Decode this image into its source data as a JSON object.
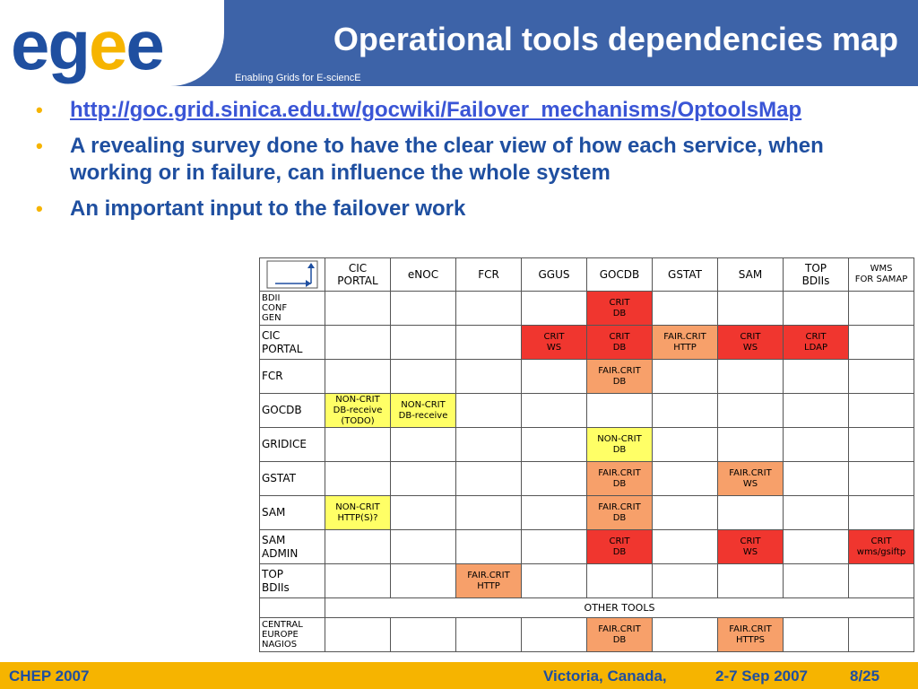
{
  "header": {
    "logo_part1": "eg",
    "logo_part2": "e",
    "logo_part3": "e",
    "title": "Operational tools dependencies map",
    "subtitle": "Enabling Grids for E-sciencE"
  },
  "bullets": [
    "http://goc.grid.sinica.edu.tw/gocwiki/Failover_mechanisms/OptoolsMap",
    "A revealing survey done to have the clear view of how each service, when working or in failure, can influence the whole system",
    "An important input to the failover work"
  ],
  "table": {
    "columns": [
      [
        "CIC",
        "PORTAL"
      ],
      [
        "eNOC"
      ],
      [
        "FCR"
      ],
      [
        "GGUS"
      ],
      [
        "GOCDB"
      ],
      [
        "GSTAT"
      ],
      [
        "SAM"
      ],
      [
        "TOP",
        "BDIIs"
      ],
      [
        "WMS",
        "FOR SAMAP"
      ]
    ],
    "rows": [
      {
        "label": [
          "BDII",
          "CONF",
          "GEN"
        ],
        "small": true,
        "cells": [
          null,
          null,
          null,
          null,
          {
            "t": [
              "CRIT",
              "DB"
            ],
            "s": "crit"
          },
          null,
          null,
          null,
          null
        ]
      },
      {
        "label": [
          "CIC",
          "PORTAL"
        ],
        "small": false,
        "cells": [
          null,
          null,
          null,
          {
            "t": [
              "CRIT",
              "WS"
            ],
            "s": "crit"
          },
          {
            "t": [
              "CRIT",
              "DB"
            ],
            "s": "crit"
          },
          {
            "t": [
              "FAIR.CRIT",
              "HTTP"
            ],
            "s": "fair"
          },
          {
            "t": [
              "CRIT",
              "WS"
            ],
            "s": "crit"
          },
          {
            "t": [
              "CRIT",
              "LDAP"
            ],
            "s": "crit"
          },
          null
        ]
      },
      {
        "label": [
          "FCR"
        ],
        "small": false,
        "cells": [
          null,
          null,
          null,
          null,
          {
            "t": [
              "FAIR.CRIT",
              "DB"
            ],
            "s": "fair"
          },
          null,
          null,
          null,
          null
        ]
      },
      {
        "label": [
          "GOCDB"
        ],
        "small": false,
        "cells": [
          {
            "t": [
              "NON-CRIT",
              "DB-receive",
              "(TODO)"
            ],
            "s": "non"
          },
          {
            "t": [
              "NON-CRIT",
              "DB-receive"
            ],
            "s": "non"
          },
          null,
          null,
          null,
          null,
          null,
          null,
          null
        ]
      },
      {
        "label": [
          "GRIDICE"
        ],
        "small": false,
        "cells": [
          null,
          null,
          null,
          null,
          {
            "t": [
              "NON-CRIT",
              "DB"
            ],
            "s": "non"
          },
          null,
          null,
          null,
          null
        ]
      },
      {
        "label": [
          "GSTAT"
        ],
        "small": false,
        "cells": [
          null,
          null,
          null,
          null,
          {
            "t": [
              "FAIR.CRIT",
              "DB"
            ],
            "s": "fair"
          },
          null,
          {
            "t": [
              "FAIR.CRIT",
              "WS"
            ],
            "s": "fair"
          },
          null,
          null
        ]
      },
      {
        "label": [
          "SAM"
        ],
        "small": false,
        "cells": [
          {
            "t": [
              "NON-CRIT",
              "HTTP(S)?"
            ],
            "s": "non"
          },
          null,
          null,
          null,
          {
            "t": [
              "FAIR.CRIT",
              "DB"
            ],
            "s": "fair"
          },
          null,
          null,
          null,
          null
        ]
      },
      {
        "label": [
          "SAM",
          "ADMIN"
        ],
        "small": false,
        "cells": [
          null,
          null,
          null,
          null,
          {
            "t": [
              "CRIT",
              "DB"
            ],
            "s": "crit"
          },
          null,
          {
            "t": [
              "CRIT",
              "WS"
            ],
            "s": "crit"
          },
          null,
          {
            "t": [
              "CRIT",
              "wms/gsiftp"
            ],
            "s": "crit"
          }
        ]
      },
      {
        "label": [
          "TOP",
          "BDIIs"
        ],
        "small": false,
        "cells": [
          null,
          null,
          {
            "t": [
              "FAIR.CRIT",
              "HTTP"
            ],
            "s": "fair"
          },
          null,
          null,
          null,
          null,
          null,
          null
        ]
      },
      {
        "other": "OTHER TOOLS"
      },
      {
        "label": [
          "CENTRAL",
          "EUROPE",
          "NAGIOS"
        ],
        "small": true,
        "cells": [
          null,
          null,
          null,
          null,
          {
            "t": [
              "FAIR.CRIT",
              "DB"
            ],
            "s": "fair"
          },
          null,
          {
            "t": [
              "FAIR.CRIT",
              "HTTPS"
            ],
            "s": "fair"
          },
          null,
          null
        ]
      }
    ]
  },
  "footer": {
    "left": "CHEP 2007",
    "venue": "Victoria, Canada,",
    "date": "2-7 Sep 2007",
    "page": "8/25"
  },
  "colors": {
    "header_blue": "#3d63a8",
    "text_blue": "#1f4fa0",
    "accent_yellow": "#f6b400",
    "crit": "#f0362f",
    "fair_crit": "#f7a06a",
    "non_crit": "#ffff66"
  }
}
